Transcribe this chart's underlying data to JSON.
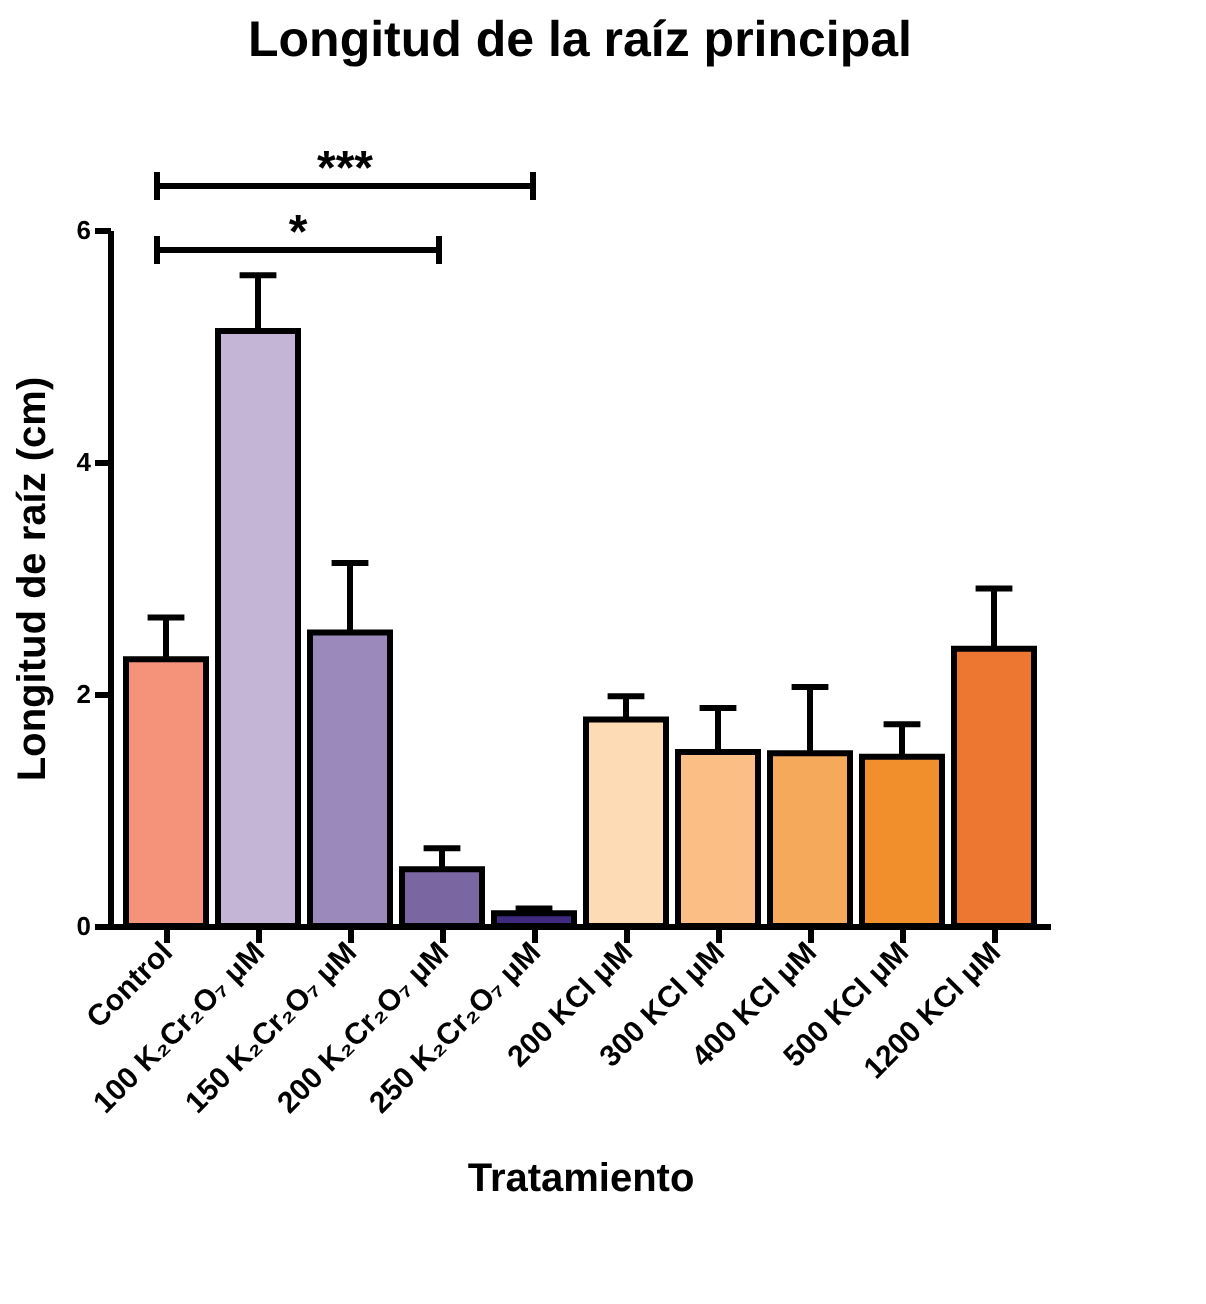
{
  "chart_data": {
    "type": "bar",
    "title": "Longitud de la raíz principal",
    "xlabel": "Tratamiento",
    "ylabel": "Longitud de raíz (cm)",
    "categories": [
      "Control",
      "100 K₂Cr₂O₇ μM",
      "150 K₂Cr₂O₇ μM",
      "200 K₂Cr₂O₇ μM",
      "250 K₂Cr₂O₇ μM",
      "200 KCl μM",
      "300 KCl μM",
      "400 KCl μM",
      "500 KCl μM",
      "1200 KCl μM"
    ],
    "values": [
      2.3,
      5.13,
      2.53,
      0.49,
      0.11,
      1.78,
      1.5,
      1.49,
      1.46,
      2.39
    ],
    "errors": [
      [
        2.3,
        2.66
      ],
      [
        5.13,
        5.61
      ],
      [
        2.53,
        3.13
      ],
      [
        0.49,
        0.67
      ],
      [
        0.11,
        0.15
      ],
      [
        1.78,
        1.98
      ],
      [
        1.5,
        1.88
      ],
      [
        1.49,
        2.06
      ],
      [
        1.46,
        1.74
      ],
      [
        2.39,
        2.91
      ]
    ],
    "colors": [
      "#f4937a",
      "#c4b5d6",
      "#9b89bb",
      "#7a66a0",
      "#3f2a7f",
      "#fddbb4",
      "#fbbf85",
      "#f5a95b",
      "#f18f2d",
      "#ed7730"
    ],
    "ylim": [
      0,
      6
    ],
    "yticks": [
      0,
      2,
      4,
      6
    ],
    "grid": false,
    "legend": false,
    "annotations": [
      "***",
      "*"
    ]
  }
}
